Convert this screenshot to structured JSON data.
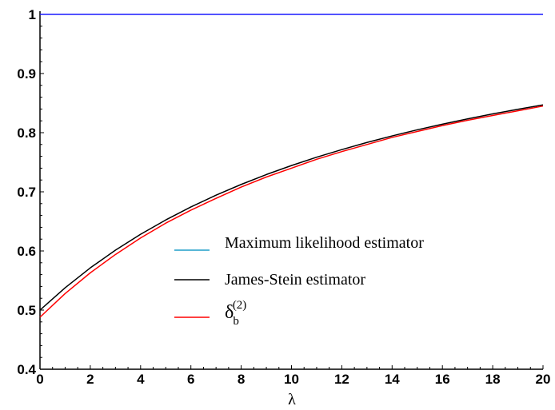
{
  "chart_data": {
    "type": "line",
    "title": "",
    "xlabel": "λ",
    "ylabel": "",
    "xlim": [
      0,
      20
    ],
    "ylim": [
      0.4,
      1.0
    ],
    "xticks": [
      "0",
      "2",
      "4",
      "6",
      "8",
      "10",
      "12",
      "14",
      "16",
      "18",
      "20"
    ],
    "yticks": [
      "0.4",
      "0.5",
      "0.6",
      "0.7",
      "0.8",
      "0.9",
      "1"
    ],
    "grid": false,
    "legend_position": "center",
    "x": [
      0,
      1,
      2,
      3,
      4,
      5,
      6,
      7,
      8,
      9,
      10,
      11,
      12,
      13,
      14,
      15,
      16,
      17,
      18,
      19,
      20
    ],
    "series": [
      {
        "name": "Maximum likelihood estimator",
        "color": "#1a1aff",
        "legend_color": "#1e9ec8",
        "values": [
          1,
          1,
          1,
          1,
          1,
          1,
          1,
          1,
          1,
          1,
          1,
          1,
          1,
          1,
          1,
          1,
          1,
          1,
          1,
          1,
          1
        ]
      },
      {
        "name": "James-Stein estimator",
        "color": "#000000",
        "values": [
          0.5,
          0.5378,
          0.5714,
          0.6013,
          0.6282,
          0.6524,
          0.6744,
          0.6943,
          0.7125,
          0.7292,
          0.7444,
          0.7585,
          0.7714,
          0.7834,
          0.7945,
          0.8048,
          0.8144,
          0.8233,
          0.8317,
          0.8395,
          0.8469
        ]
      },
      {
        "name": "δ_b^(2)",
        "name_base": "δ",
        "name_sub": "b",
        "name_sup": "(2)",
        "color": "#ff0000",
        "values": [
          0.488,
          0.528,
          0.563,
          0.594,
          0.622,
          0.647,
          0.669,
          0.689,
          0.708,
          0.725,
          0.74,
          0.755,
          0.768,
          0.78,
          0.792,
          0.802,
          0.812,
          0.821,
          0.829,
          0.837,
          0.845
        ]
      }
    ]
  }
}
